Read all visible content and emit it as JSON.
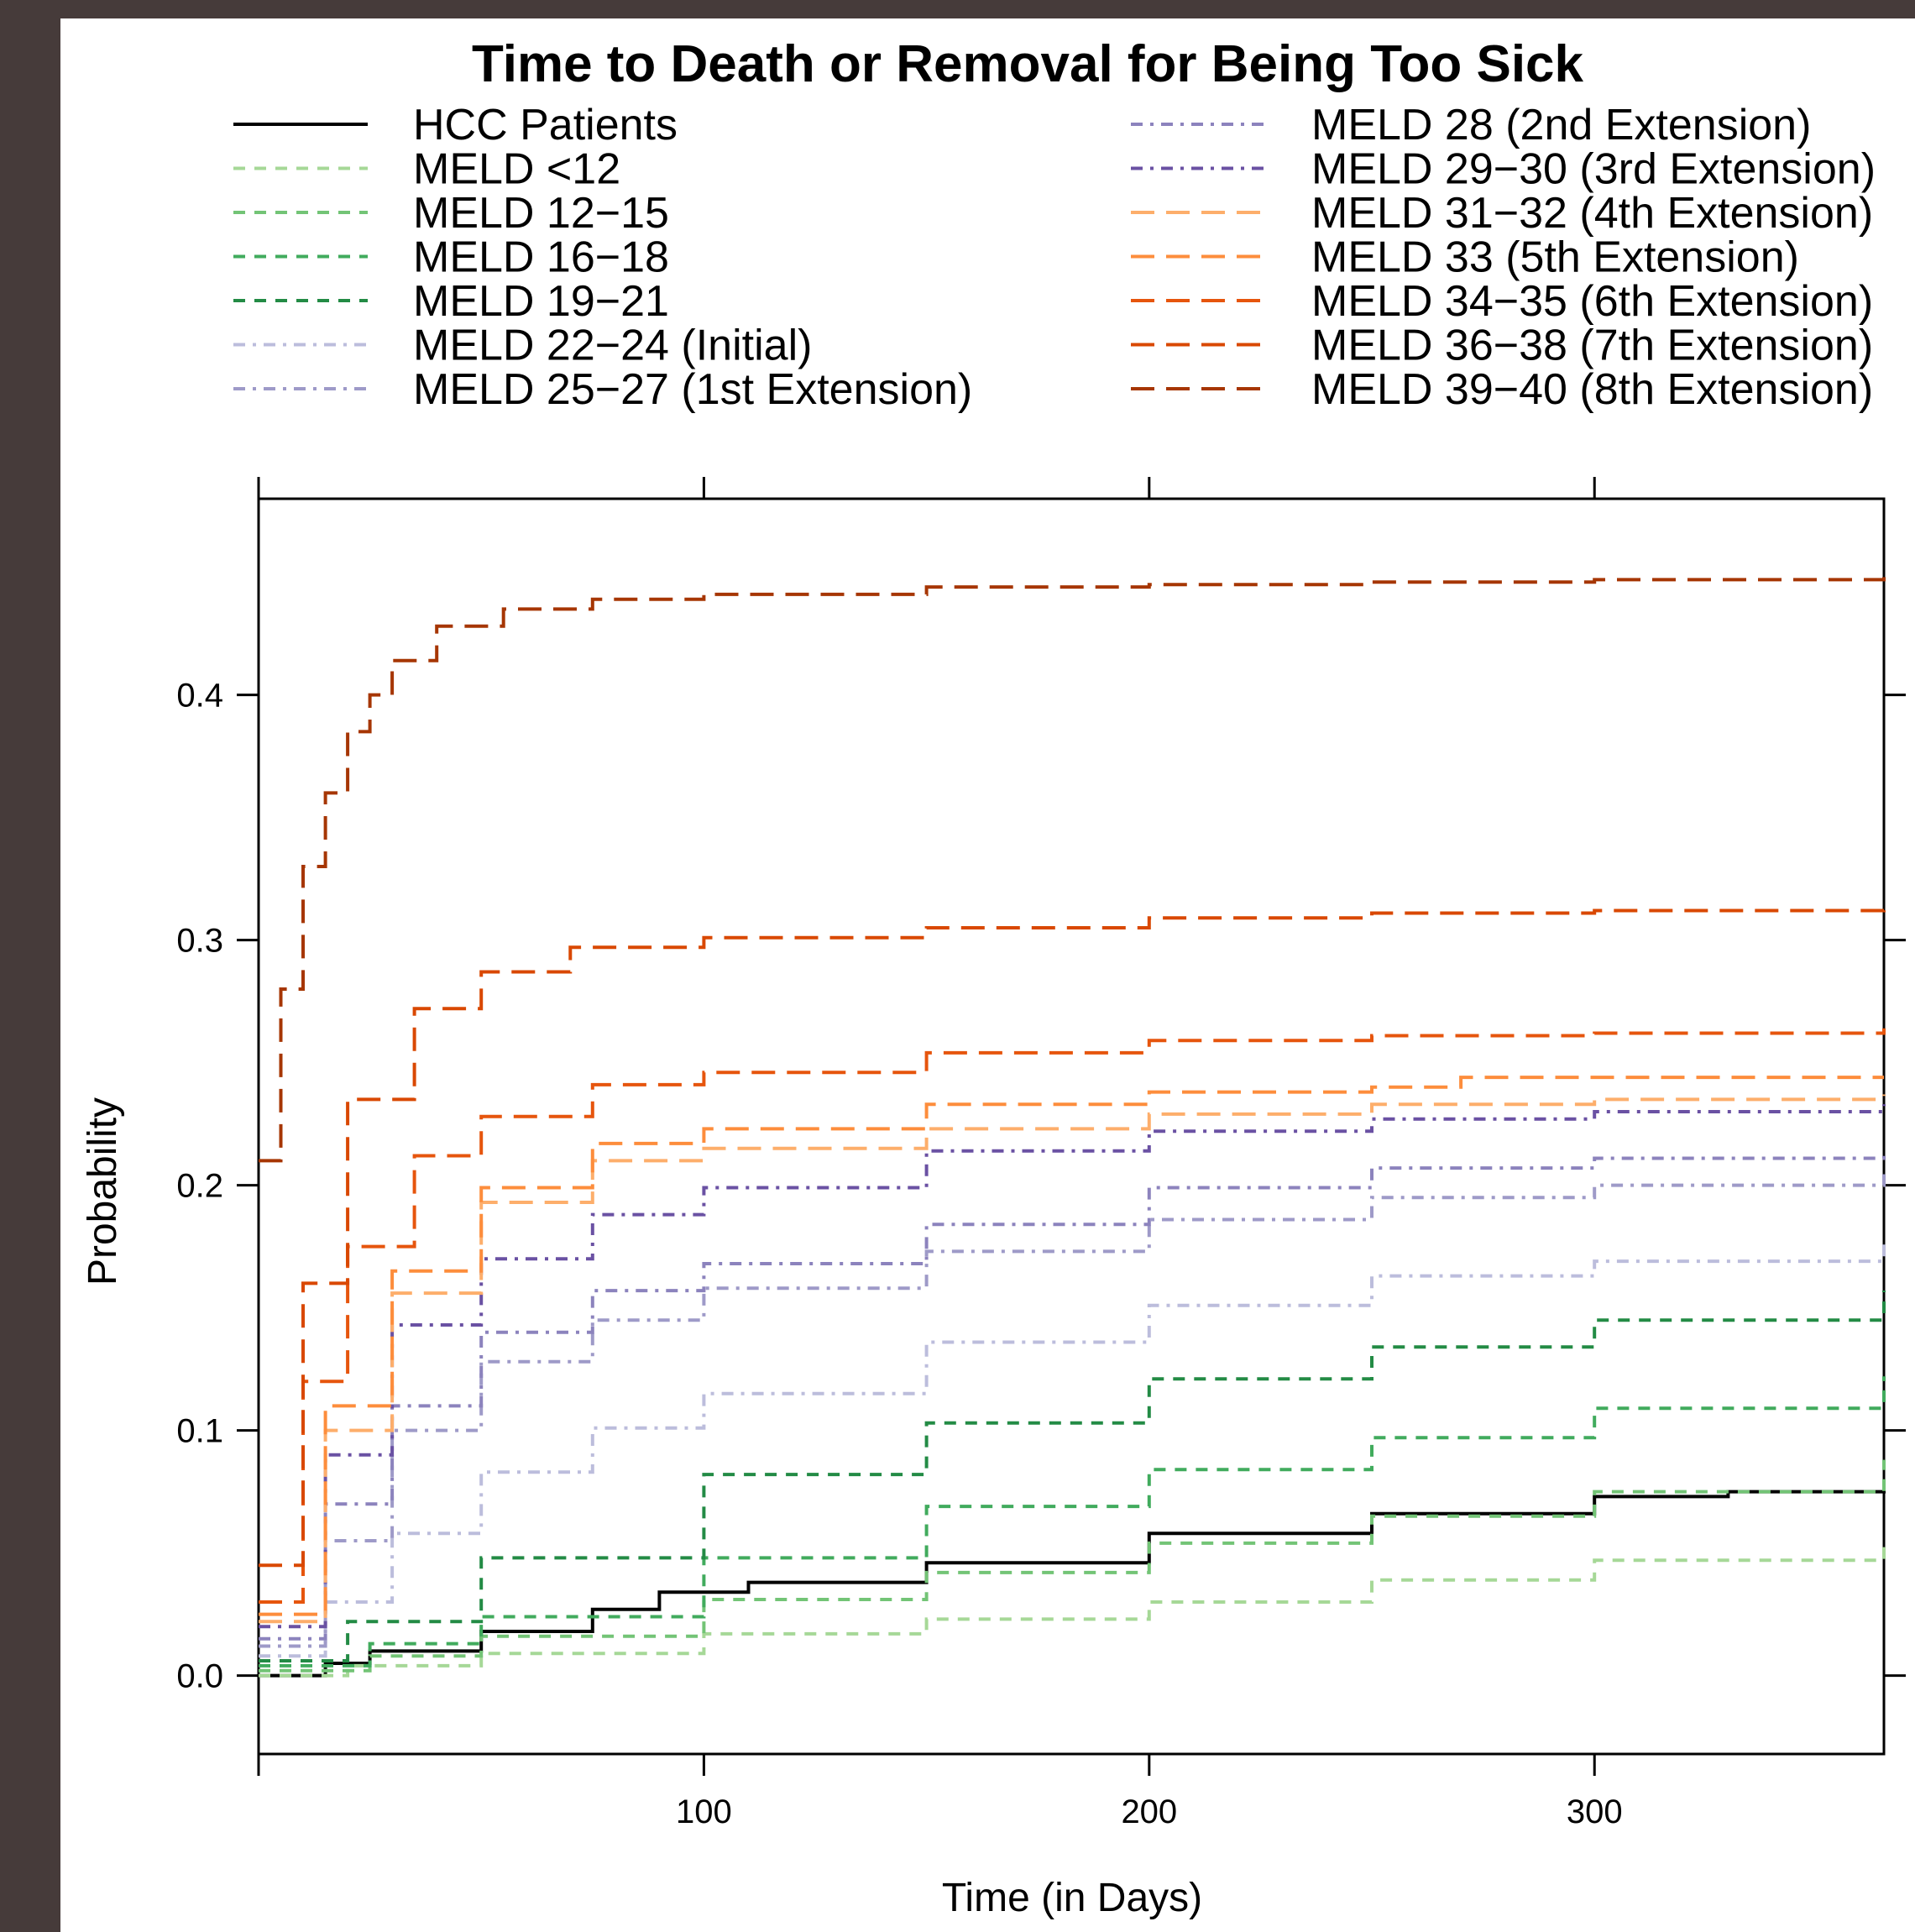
{
  "chart_data": {
    "type": "line",
    "title": "Time  to Death or Removal for Being Too Sick",
    "xlabel": "Time (in Days)",
    "ylabel": "Probability",
    "xlim": [
      0,
      365
    ],
    "ylim": [
      -0.032,
      0.48
    ],
    "x_ticks": [
      100,
      200,
      300
    ],
    "y_ticks": [
      "0.0",
      "0.1",
      "0.2",
      "0.3",
      "0.4"
    ],
    "grid": false,
    "legend_position": "top",
    "series": [
      {
        "name": "HCC Patients",
        "color": "#000000",
        "dash": "solid",
        "width": 4,
        "points": [
          [
            0,
            0
          ],
          [
            15,
            0.005
          ],
          [
            25,
            0.01
          ],
          [
            50,
            0.018
          ],
          [
            75,
            0.027
          ],
          [
            90,
            0.034
          ],
          [
            110,
            0.038
          ],
          [
            150,
            0.046
          ],
          [
            200,
            0.058
          ],
          [
            250,
            0.066
          ],
          [
            300,
            0.073
          ],
          [
            330,
            0.075
          ],
          [
            365,
            0.079
          ]
        ]
      },
      {
        "name": "MELD <12",
        "color": "#a6d897",
        "dash": "dash-short",
        "width": 4,
        "points": [
          [
            0,
            0
          ],
          [
            20,
            0.004
          ],
          [
            50,
            0.009
          ],
          [
            100,
            0.017
          ],
          [
            150,
            0.023
          ],
          [
            200,
            0.03
          ],
          [
            250,
            0.039
          ],
          [
            300,
            0.047
          ],
          [
            365,
            0.056
          ]
        ]
      },
      {
        "name": "MELD 12−15",
        "color": "#73c476",
        "dash": "dash-short",
        "width": 4,
        "points": [
          [
            0,
            0.002
          ],
          [
            25,
            0.008
          ],
          [
            50,
            0.016
          ],
          [
            100,
            0.031
          ],
          [
            150,
            0.042
          ],
          [
            200,
            0.054
          ],
          [
            250,
            0.065
          ],
          [
            300,
            0.075
          ],
          [
            365,
            0.088
          ]
        ]
      },
      {
        "name": "MELD 16−18",
        "color": "#41ab5d",
        "dash": "dash-short",
        "width": 4,
        "points": [
          [
            0,
            0.004
          ],
          [
            25,
            0.013
          ],
          [
            50,
            0.024
          ],
          [
            100,
            0.048
          ],
          [
            150,
            0.069
          ],
          [
            200,
            0.084
          ],
          [
            250,
            0.097
          ],
          [
            300,
            0.109
          ],
          [
            365,
            0.122
          ]
        ]
      },
      {
        "name": "MELD 19−21",
        "color": "#238b45",
        "dash": "dash-short",
        "width": 4,
        "points": [
          [
            0,
            0.006
          ],
          [
            20,
            0.022
          ],
          [
            50,
            0.048
          ],
          [
            100,
            0.082
          ],
          [
            150,
            0.103
          ],
          [
            200,
            0.121
          ],
          [
            250,
            0.134
          ],
          [
            300,
            0.145
          ],
          [
            365,
            0.157
          ]
        ]
      },
      {
        "name": "MELD 22−24 (Initial)",
        "color": "#bcbddc",
        "dash": "dash-dot",
        "width": 4,
        "points": [
          [
            0,
            0.008
          ],
          [
            15,
            0.03
          ],
          [
            30,
            0.058
          ],
          [
            50,
            0.083
          ],
          [
            75,
            0.101
          ],
          [
            100,
            0.115
          ],
          [
            150,
            0.136
          ],
          [
            200,
            0.151
          ],
          [
            250,
            0.163
          ],
          [
            300,
            0.169
          ],
          [
            365,
            0.178
          ]
        ]
      },
      {
        "name": "MELD 25−27 (1st Extension)",
        "color": "#9e9ac8",
        "dash": "dash-dot",
        "width": 4,
        "points": [
          [
            0,
            0.012
          ],
          [
            15,
            0.055
          ],
          [
            30,
            0.1
          ],
          [
            50,
            0.128
          ],
          [
            75,
            0.145
          ],
          [
            100,
            0.158
          ],
          [
            150,
            0.173
          ],
          [
            200,
            0.186
          ],
          [
            250,
            0.195
          ],
          [
            300,
            0.2
          ],
          [
            365,
            0.205
          ]
        ]
      },
      {
        "name": "MELD 28 (2nd Extension)",
        "color": "#8c83bd",
        "dash": "dash-dot",
        "width": 4,
        "points": [
          [
            0,
            0.015
          ],
          [
            15,
            0.07
          ],
          [
            30,
            0.11
          ],
          [
            50,
            0.14
          ],
          [
            75,
            0.157
          ],
          [
            100,
            0.168
          ],
          [
            150,
            0.184
          ],
          [
            200,
            0.199
          ],
          [
            250,
            0.207
          ],
          [
            300,
            0.211
          ],
          [
            365,
            0.214
          ]
        ]
      },
      {
        "name": "MELD 29−30 (3rd Extension)",
        "color": "#6a51a3",
        "dash": "dash-dot",
        "width": 4,
        "points": [
          [
            0,
            0.02
          ],
          [
            15,
            0.09
          ],
          [
            30,
            0.143
          ],
          [
            50,
            0.17
          ],
          [
            75,
            0.188
          ],
          [
            100,
            0.199
          ],
          [
            150,
            0.214
          ],
          [
            200,
            0.222
          ],
          [
            250,
            0.227
          ],
          [
            300,
            0.23
          ],
          [
            365,
            0.233
          ]
        ]
      },
      {
        "name": "MELD 31−32 (4th Extension)",
        "color": "#fdae6b",
        "dash": "dash-long",
        "width": 4,
        "points": [
          [
            0,
            0.022
          ],
          [
            15,
            0.1
          ],
          [
            30,
            0.156
          ],
          [
            50,
            0.193
          ],
          [
            75,
            0.21
          ],
          [
            100,
            0.215
          ],
          [
            150,
            0.223
          ],
          [
            200,
            0.229
          ],
          [
            250,
            0.233
          ],
          [
            300,
            0.235
          ],
          [
            365,
            0.237
          ]
        ]
      },
      {
        "name": "MELD 33 (5th Extension)",
        "color": "#fd8d3c",
        "dash": "dash-long",
        "width": 4,
        "points": [
          [
            0,
            0.025
          ],
          [
            15,
            0.11
          ],
          [
            30,
            0.165
          ],
          [
            50,
            0.199
          ],
          [
            75,
            0.217
          ],
          [
            100,
            0.223
          ],
          [
            150,
            0.233
          ],
          [
            200,
            0.238
          ],
          [
            250,
            0.24
          ],
          [
            270,
            0.244
          ],
          [
            365,
            0.244
          ]
        ]
      },
      {
        "name": "MELD 34−35 (6th Extension)",
        "color": "#e6550d",
        "dash": "dash-long",
        "width": 4,
        "points": [
          [
            0,
            0.03
          ],
          [
            10,
            0.12
          ],
          [
            20,
            0.175
          ],
          [
            35,
            0.212
          ],
          [
            50,
            0.228
          ],
          [
            75,
            0.241
          ],
          [
            100,
            0.246
          ],
          [
            150,
            0.254
          ],
          [
            200,
            0.259
          ],
          [
            250,
            0.261
          ],
          [
            300,
            0.262
          ],
          [
            365,
            0.264
          ]
        ]
      },
      {
        "name": "MELD 36−38 (7th Extension)",
        "color": "#d94801",
        "dash": "dash-long",
        "width": 4,
        "points": [
          [
            0,
            0.045
          ],
          [
            10,
            0.16
          ],
          [
            20,
            0.235
          ],
          [
            35,
            0.272
          ],
          [
            50,
            0.287
          ],
          [
            70,
            0.297
          ],
          [
            100,
            0.301
          ],
          [
            150,
            0.305
          ],
          [
            200,
            0.309
          ],
          [
            250,
            0.311
          ],
          [
            300,
            0.312
          ],
          [
            365,
            0.313
          ]
        ]
      },
      {
        "name": "MELD 39−40 (8th Extension)",
        "color": "#a63603",
        "dash": "dash-long",
        "width": 4,
        "points": [
          [
            0,
            0.21
          ],
          [
            5,
            0.28
          ],
          [
            10,
            0.33
          ],
          [
            15,
            0.36
          ],
          [
            20,
            0.385
          ],
          [
            25,
            0.4
          ],
          [
            30,
            0.414
          ],
          [
            40,
            0.428
          ],
          [
            55,
            0.435
          ],
          [
            75,
            0.439
          ],
          [
            100,
            0.441
          ],
          [
            150,
            0.444
          ],
          [
            200,
            0.445
          ],
          [
            250,
            0.446
          ],
          [
            300,
            0.447
          ],
          [
            365,
            0.448
          ]
        ]
      }
    ]
  }
}
